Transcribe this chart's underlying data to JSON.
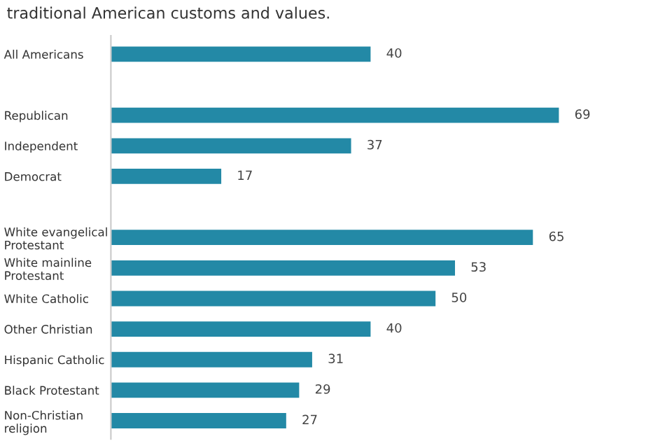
{
  "chart_data": {
    "type": "bar",
    "orientation": "horizontal",
    "title": "traditional American customs and values.",
    "categories": [
      "All Americans",
      null,
      "Republican",
      "Independent",
      "Democrat",
      null,
      "White evangelical\nProtestant",
      "White mainline\nProtestant",
      "White Catholic",
      "Other Christian",
      "Hispanic Catholic",
      "Black Protestant",
      "Non-Christian\nreligion"
    ],
    "values": [
      40,
      null,
      69,
      37,
      17,
      null,
      65,
      53,
      50,
      40,
      31,
      29,
      27
    ],
    "color": "#2389a6",
    "data_labels": true,
    "grid": false,
    "legend": false
  }
}
